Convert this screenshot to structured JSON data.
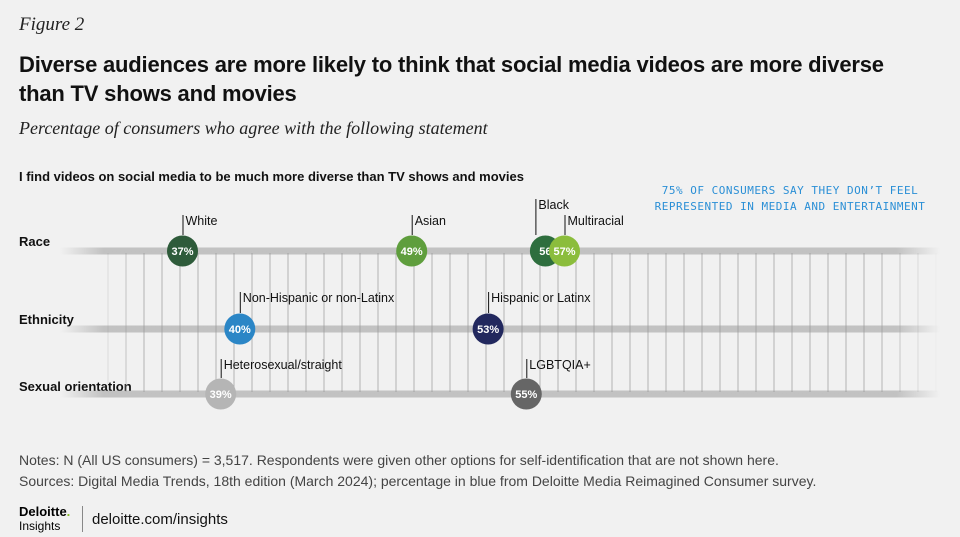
{
  "figure_label": "Figure 2",
  "title": "Diverse audiences are more likely to think that social media videos are more diverse than TV shows and movies",
  "subtitle": "Percentage of consumers who agree with the following statement",
  "statement": "I find videos on social media to be much more diverse than TV shows and movies",
  "annotation": "75% of consumers say they don’t feel represented in media and entertainment",
  "notes": [
    "Notes: N (All US consumers) = 3,517. Respondents were given other options for self-identification that are not shown here.",
    "Sources: Digital Media Trends, 18th edition (March 2024); percentage in blue from Deloitte Media Reimagined Consumer survey."
  ],
  "footer": {
    "brand_name": "Deloitte",
    "brand_sub": "Insights",
    "url": "deloitte.com/insights"
  },
  "colors": {
    "annotation": "#2a8fd6",
    "white": "#2e5b3a",
    "asian": "#5f9e3d",
    "black": "#2e6e3e",
    "multiracial": "#8bbd3c",
    "non_hispanic": "#2b86c6",
    "hispanic": "#22285e",
    "hetero": "#b5b5b5",
    "lgbtqia": "#666666"
  },
  "chart_data": {
    "type": "dot",
    "title": "I find videos on social media to be much more diverse than TV shows and movies",
    "unit": "%",
    "rows": [
      {
        "label": "Race",
        "points": [
          {
            "label": "White",
            "value": 37,
            "text": "37%",
            "color": "#2e5b3a"
          },
          {
            "label": "Asian",
            "value": 49,
            "text": "49%",
            "color": "#5f9e3d"
          },
          {
            "label": "Black",
            "value": 56,
            "text": "56",
            "color": "#2e6e3e"
          },
          {
            "label": "Multiracial",
            "value": 57,
            "text": "57%",
            "color": "#8bbd3c"
          }
        ]
      },
      {
        "label": "Ethnicity",
        "points": [
          {
            "label": "Non-Hispanic or non-Latinx",
            "value": 40,
            "text": "40%",
            "color": "#2b86c6"
          },
          {
            "label": "Hispanic or Latinx",
            "value": 53,
            "text": "53%",
            "color": "#22285e"
          }
        ]
      },
      {
        "label": "Sexual orientation",
        "points": [
          {
            "label": "Heterosexual/straight",
            "value": 39,
            "text": "39%",
            "color": "#b5b5b5"
          },
          {
            "label": "LGBTQIA+",
            "value": 55,
            "text": "55%",
            "color": "#666666"
          }
        ]
      }
    ]
  }
}
